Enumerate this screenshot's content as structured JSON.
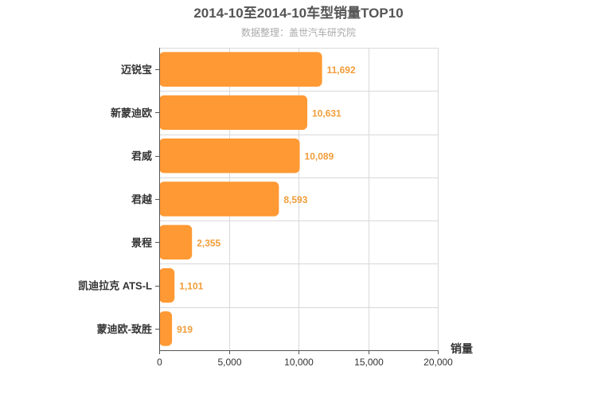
{
  "chart_data": {
    "type": "bar",
    "orientation": "horizontal",
    "title": "2014-10至2014-10车型销量TOP10",
    "subtitle": "数据整理：盖世汽车研究院",
    "xlabel": "销量",
    "ylabel": "",
    "categories": [
      "迈锐宝",
      "新蒙迪欧",
      "君威",
      "君越",
      "景程",
      "凯迪拉克 ATS-L",
      "蒙迪欧-致胜"
    ],
    "values": [
      11692,
      10631,
      10089,
      8593,
      2355,
      1101,
      919
    ],
    "value_labels": [
      "11,692",
      "10,631",
      "10,089",
      "8,593",
      "2,355",
      "1,101",
      "919"
    ],
    "xlim": [
      0,
      20000
    ],
    "xticks": [
      0,
      5000,
      10000,
      15000,
      20000
    ],
    "xtick_labels": [
      "0",
      "5,000",
      "10,000",
      "15,000",
      "20,000"
    ],
    "grid": true,
    "bar_color": "#ff9933",
    "label_color": "#f19d3a"
  }
}
